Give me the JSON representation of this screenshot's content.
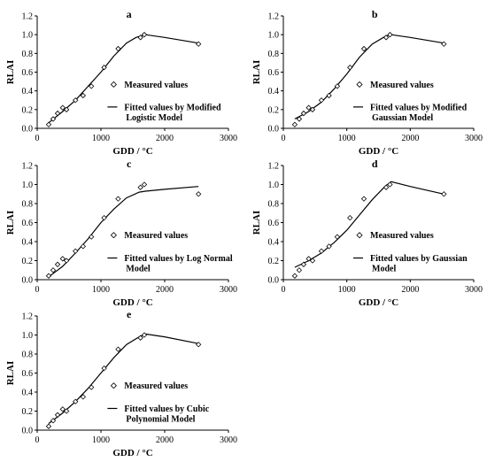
{
  "figure": {
    "x_axis_label": "GDD / °C",
    "y_axis_label": "RLAI",
    "x_ticks": [
      "0",
      "1000",
      "2000",
      "3000"
    ],
    "y_ticks": [
      "0.0",
      "0.2",
      "0.4",
      "0.6",
      "0.8",
      "1.0",
      "1.2"
    ],
    "measured_label": "Measured values"
  },
  "chart_data": [
    {
      "type": "scatter",
      "panel": "a",
      "xlabel": "GDD / °C",
      "ylabel": "RLAI",
      "xlim": [
        0,
        3000
      ],
      "ylim": [
        0,
        1.2
      ],
      "series": [
        {
          "name": "Measured values",
          "marker": "diamond-open",
          "x": [
            180,
            250,
            320,
            400,
            460,
            600,
            720,
            850,
            1050,
            1270,
            1620,
            1680,
            2530
          ],
          "y": [
            0.04,
            0.1,
            0.16,
            0.22,
            0.2,
            0.3,
            0.35,
            0.45,
            0.65,
            0.85,
            0.97,
            1.0,
            0.9
          ]
        },
        {
          "name": "Fitted values by Modified Logistic Model",
          "marker": "line",
          "x": [
            180,
            400,
            600,
            800,
            1000,
            1200,
            1400,
            1550,
            1700,
            2000,
            2530
          ],
          "y": [
            0.06,
            0.18,
            0.3,
            0.45,
            0.6,
            0.77,
            0.91,
            0.97,
            1.0,
            0.97,
            0.91
          ]
        }
      ],
      "legend": [
        "Measured values",
        "Fitted values by Modified",
        "Logistic Model"
      ]
    },
    {
      "type": "scatter",
      "panel": "b",
      "xlabel": "GDD / °C",
      "ylabel": "RLAI",
      "xlim": [
        0,
        3000
      ],
      "ylim": [
        0,
        1.2
      ],
      "series": [
        {
          "name": "Measured values",
          "marker": "diamond-open",
          "x": [
            180,
            250,
            320,
            400,
            460,
            600,
            720,
            850,
            1050,
            1270,
            1620,
            1680,
            2530
          ],
          "y": [
            0.04,
            0.1,
            0.16,
            0.22,
            0.2,
            0.3,
            0.35,
            0.45,
            0.65,
            0.85,
            0.97,
            1.0,
            0.9
          ]
        },
        {
          "name": "Fitted values by Modified Gaussian Model",
          "marker": "line",
          "x": [
            180,
            400,
            600,
            800,
            1000,
            1200,
            1400,
            1600,
            1700,
            2000,
            2530
          ],
          "y": [
            0.1,
            0.18,
            0.28,
            0.42,
            0.58,
            0.76,
            0.9,
            0.98,
            1.0,
            0.97,
            0.91
          ]
        }
      ],
      "legend": [
        "Measured values",
        "Fitted values by Modified",
        "Gaussian Model"
      ]
    },
    {
      "type": "scatter",
      "panel": "c",
      "xlabel": "GDD / °C",
      "ylabel": "RLAI",
      "xlim": [
        0,
        3000
      ],
      "ylim": [
        0,
        1.2
      ],
      "series": [
        {
          "name": "Measured values",
          "marker": "diamond-open",
          "x": [
            180,
            250,
            320,
            400,
            460,
            600,
            720,
            850,
            1050,
            1270,
            1620,
            1680,
            2530
          ],
          "y": [
            0.04,
            0.1,
            0.16,
            0.22,
            0.2,
            0.3,
            0.35,
            0.45,
            0.65,
            0.85,
            0.97,
            1.0,
            0.9
          ]
        },
        {
          "name": "Fitted values by Log Normal Model",
          "marker": "line",
          "x": [
            180,
            400,
            600,
            800,
            1000,
            1200,
            1400,
            1600,
            1700,
            2000,
            2530
          ],
          "y": [
            0.03,
            0.14,
            0.28,
            0.43,
            0.6,
            0.74,
            0.86,
            0.92,
            0.93,
            0.95,
            0.98
          ]
        }
      ],
      "legend": [
        "Measured values",
        "Fitted values by Log Normal",
        "Model"
      ]
    },
    {
      "type": "scatter",
      "panel": "d",
      "xlabel": "GDD / °C",
      "ylabel": "RLAI",
      "xlim": [
        0,
        3000
      ],
      "ylim": [
        0,
        1.2
      ],
      "series": [
        {
          "name": "Measured values",
          "marker": "diamond-open",
          "x": [
            180,
            250,
            320,
            400,
            460,
            600,
            720,
            850,
            1050,
            1270,
            1620,
            1680,
            2530
          ],
          "y": [
            0.04,
            0.1,
            0.16,
            0.22,
            0.2,
            0.3,
            0.35,
            0.45,
            0.65,
            0.85,
            0.97,
            1.0,
            0.9
          ]
        },
        {
          "name": "Fitted values by Gaussian Model",
          "marker": "line",
          "x": [
            180,
            400,
            600,
            800,
            1000,
            1200,
            1400,
            1600,
            1700,
            2000,
            2530
          ],
          "y": [
            0.13,
            0.2,
            0.28,
            0.39,
            0.52,
            0.68,
            0.84,
            0.98,
            1.03,
            0.98,
            0.9
          ]
        }
      ],
      "legend": [
        "Measured values",
        "Fitted values by Gaussian",
        "Model"
      ]
    },
    {
      "type": "scatter",
      "panel": "e",
      "xlabel": "GDD / °C",
      "ylabel": "RLAI",
      "xlim": [
        0,
        3000
      ],
      "ylim": [
        0,
        1.2
      ],
      "series": [
        {
          "name": "Measured values",
          "marker": "diamond-open",
          "x": [
            180,
            250,
            320,
            400,
            460,
            600,
            720,
            850,
            1050,
            1270,
            1620,
            1680,
            2530
          ],
          "y": [
            0.04,
            0.1,
            0.16,
            0.22,
            0.2,
            0.3,
            0.35,
            0.45,
            0.65,
            0.85,
            0.97,
            1.0,
            0.9
          ]
        },
        {
          "name": "Fitted values by Cubic Polynomial Model",
          "marker": "line",
          "x": [
            180,
            400,
            600,
            800,
            1000,
            1200,
            1400,
            1600,
            1700,
            2000,
            2530
          ],
          "y": [
            0.07,
            0.18,
            0.3,
            0.44,
            0.6,
            0.76,
            0.9,
            0.98,
            1.01,
            0.98,
            0.91
          ]
        }
      ],
      "legend": [
        "Measured values",
        "Fitted values by Cubic",
        "Polynomial Model"
      ]
    }
  ]
}
